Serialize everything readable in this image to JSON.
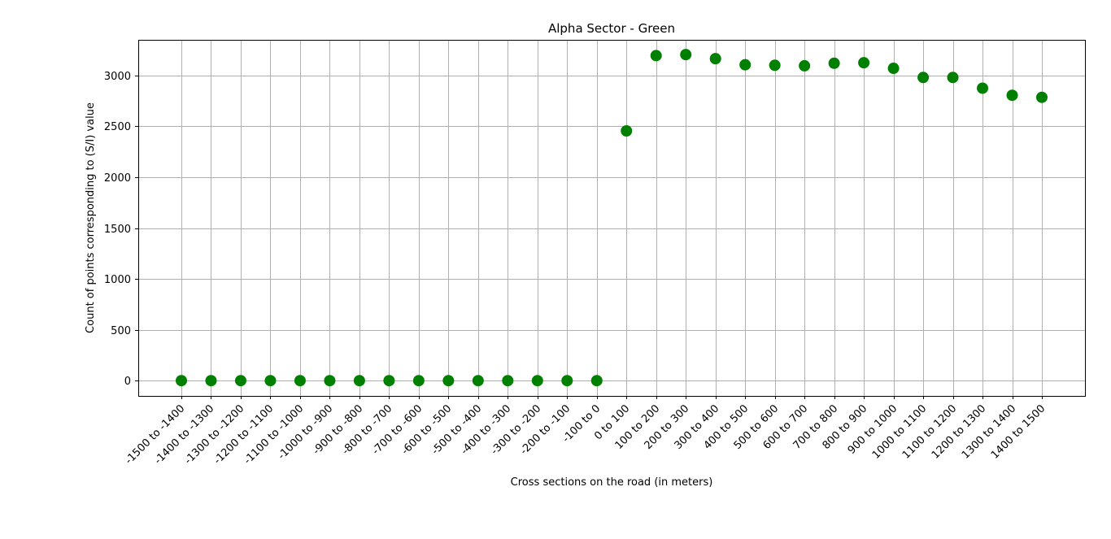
{
  "chart_data": {
    "type": "scatter",
    "title": "Alpha Sector - Green",
    "xlabel": "Cross sections on the road (in meters)",
    "ylabel": "Count of points corresponding to (S/I) value",
    "ylim": [
      -150,
      3350
    ],
    "yticks": [
      0,
      500,
      1000,
      1500,
      2000,
      2500,
      3000
    ],
    "grid": true,
    "marker_color": "#008000",
    "categories": [
      "-1500 to -1400",
      "-1400 to -1300",
      "-1300 to -1200",
      "-1200 to -1100",
      "-1100 to -1000",
      "-1000 to -900",
      "-900 to -800",
      "-800 to -700",
      "-700 to -600",
      "-600 to -500",
      "-500 to -400",
      "-400 to -300",
      "-300 to -200",
      "-200 to -100",
      "-100 to 0",
      "0 to 100",
      "100 to 200",
      "200 to 300",
      "300 to 400",
      "400 to 500",
      "500 to 600",
      "600 to 700",
      "700 to 800",
      "800 to 900",
      "900 to 1000",
      "1000 to 1100",
      "1100 to 1200",
      "1200 to 1300",
      "1300 to 1400",
      "1400 to 1500"
    ],
    "values": [
      0,
      0,
      0,
      0,
      0,
      0,
      0,
      0,
      0,
      0,
      0,
      0,
      0,
      0,
      0,
      2455,
      3195,
      3205,
      3165,
      3105,
      3100,
      3095,
      3120,
      3125,
      3070,
      2980,
      2980,
      2875,
      2805,
      2785
    ]
  }
}
